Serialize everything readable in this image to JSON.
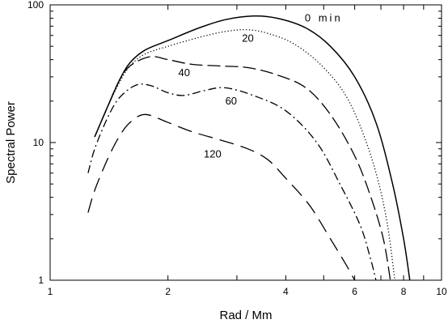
{
  "chart_data": {
    "type": "line",
    "xlabel": "Rad / Mm",
    "ylabel": "Spectral Power",
    "xscale": "log",
    "yscale": "log",
    "xlim": [
      1,
      10
    ],
    "ylim": [
      1,
      100
    ],
    "x_ticks": [
      "1",
      "2",
      "4",
      "6",
      "8",
      "10"
    ],
    "y_ticks": [
      "1",
      "10",
      "100"
    ],
    "grid": false,
    "legend": "none",
    "series": [
      {
        "name": "0 min",
        "dash": "solid",
        "points": [
          [
            1.3,
            11
          ],
          [
            1.4,
            18
          ],
          [
            1.5,
            28
          ],
          [
            1.6,
            38
          ],
          [
            1.75,
            47
          ],
          [
            2.0,
            55
          ],
          [
            2.4,
            68
          ],
          [
            2.8,
            78
          ],
          [
            3.3,
            83
          ],
          [
            3.8,
            80
          ],
          [
            4.5,
            68
          ],
          [
            5.2,
            50
          ],
          [
            6.0,
            30
          ],
          [
            6.8,
            14
          ],
          [
            7.5,
            5
          ],
          [
            8.0,
            2
          ],
          [
            8.3,
            1
          ]
        ]
      },
      {
        "name": "20",
        "dash": "dotted",
        "points": [
          [
            1.3,
            11
          ],
          [
            1.4,
            18
          ],
          [
            1.5,
            27
          ],
          [
            1.6,
            36
          ],
          [
            1.75,
            44
          ],
          [
            2.0,
            50
          ],
          [
            2.4,
            58
          ],
          [
            2.8,
            64
          ],
          [
            3.2,
            66
          ],
          [
            3.6,
            62
          ],
          [
            4.2,
            52
          ],
          [
            5.0,
            35
          ],
          [
            5.8,
            20
          ],
          [
            6.6,
            8
          ],
          [
            7.2,
            3
          ],
          [
            7.6,
            1
          ]
        ]
      },
      {
        "name": "40",
        "dash": "long-dash",
        "points": [
          [
            1.3,
            11
          ],
          [
            1.4,
            18
          ],
          [
            1.5,
            28
          ],
          [
            1.6,
            36
          ],
          [
            1.8,
            42
          ],
          [
            2.0,
            40
          ],
          [
            2.3,
            37
          ],
          [
            2.7,
            36
          ],
          [
            3.2,
            35
          ],
          [
            3.8,
            31
          ],
          [
            4.5,
            25
          ],
          [
            5.2,
            16
          ],
          [
            6.0,
            8
          ],
          [
            6.6,
            4
          ],
          [
            7.1,
            2
          ],
          [
            7.4,
            1
          ]
        ]
      },
      {
        "name": "60",
        "dash": "dash-dot",
        "points": [
          [
            1.25,
            6
          ],
          [
            1.3,
            9
          ],
          [
            1.4,
            15
          ],
          [
            1.5,
            21
          ],
          [
            1.65,
            26
          ],
          [
            1.8,
            26
          ],
          [
            2.0,
            23
          ],
          [
            2.2,
            22
          ],
          [
            2.5,
            24
          ],
          [
            2.8,
            25
          ],
          [
            3.3,
            22
          ],
          [
            4.0,
            17
          ],
          [
            4.8,
            10
          ],
          [
            5.5,
            5
          ],
          [
            6.2,
            2.5
          ],
          [
            6.6,
            1.4
          ],
          [
            6.8,
            1
          ]
        ]
      },
      {
        "name": "120",
        "dash": "long-dash-gap",
        "points": [
          [
            1.25,
            3.1
          ],
          [
            1.3,
            4.5
          ],
          [
            1.4,
            7.5
          ],
          [
            1.5,
            11
          ],
          [
            1.6,
            14
          ],
          [
            1.75,
            16
          ],
          [
            2.0,
            14
          ],
          [
            2.3,
            12
          ],
          [
            2.7,
            10.5
          ],
          [
            3.2,
            9
          ],
          [
            3.6,
            7.5
          ],
          [
            4.0,
            5.5
          ],
          [
            4.6,
            3.5
          ],
          [
            5.2,
            2
          ],
          [
            5.7,
            1.3
          ],
          [
            6.0,
            1
          ]
        ]
      }
    ],
    "annotations": [
      {
        "text": "0 min",
        "x": 5.0,
        "y": 80
      },
      {
        "text": "20",
        "x": 3.2,
        "y": 57
      },
      {
        "text": "40",
        "x": 2.2,
        "y": 32
      },
      {
        "text": "60",
        "x": 2.9,
        "y": 20
      },
      {
        "text": "120",
        "x": 2.6,
        "y": 8.2
      }
    ]
  }
}
